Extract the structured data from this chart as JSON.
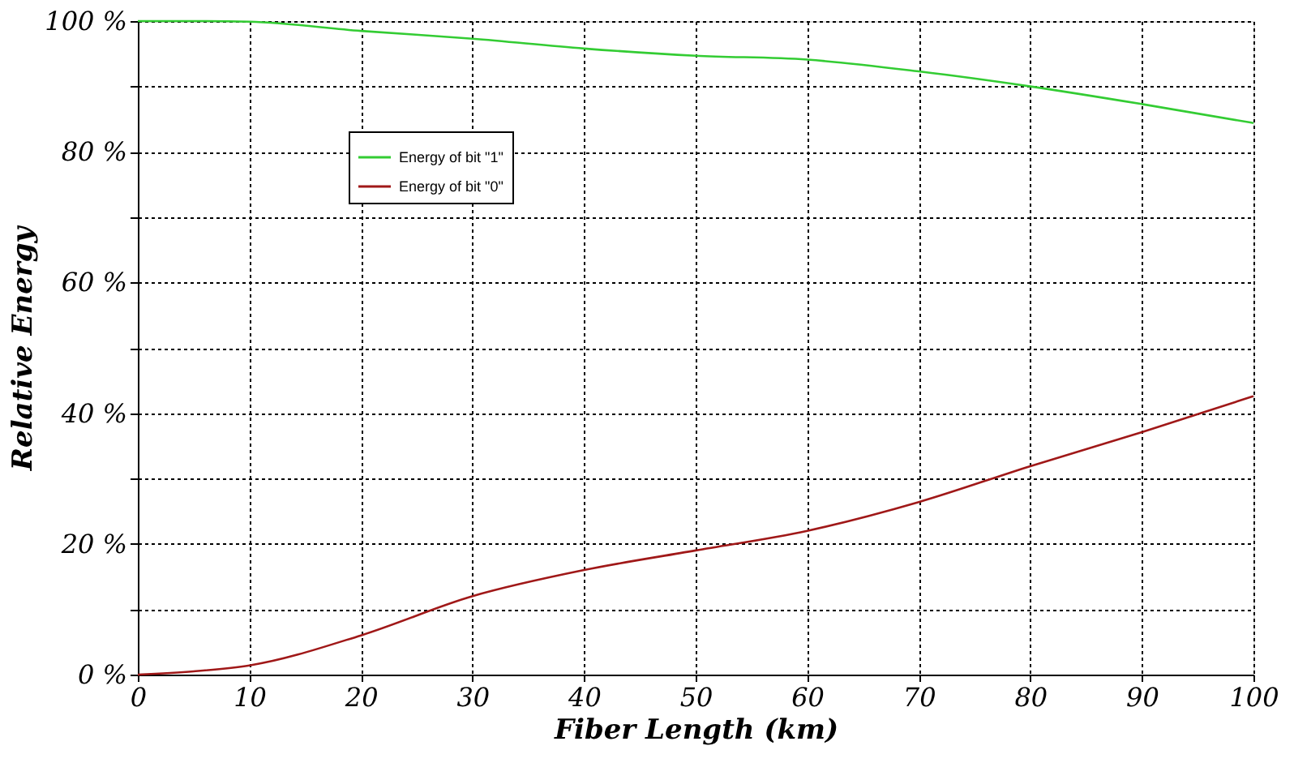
{
  "chart_data": {
    "type": "line",
    "xlabel": "Fiber Length (km)",
    "ylabel": "Relative Energy",
    "xlim": [
      0,
      100
    ],
    "ylim": [
      0,
      100
    ],
    "xticks": [
      0,
      10,
      20,
      30,
      40,
      50,
      60,
      70,
      80,
      90,
      100
    ],
    "yticks": [
      {
        "value": 0,
        "label": "0 %"
      },
      {
        "value": 10,
        "label": null
      },
      {
        "value": 20,
        "label": "20 %"
      },
      {
        "value": 30,
        "label": null
      },
      {
        "value": 40,
        "label": "40 %"
      },
      {
        "value": 50,
        "label": null
      },
      {
        "value": 60,
        "label": "60 %"
      },
      {
        "value": 70,
        "label": null
      },
      {
        "value": 80,
        "label": "80 %"
      },
      {
        "value": 90,
        "label": null
      },
      {
        "value": 100,
        "label": "100 %"
      }
    ],
    "grid": true,
    "legend": "top left",
    "line_style": "solid",
    "marker": "none",
    "x": [
      0,
      5,
      10,
      20,
      30,
      40,
      50,
      60,
      70,
      80,
      90,
      100
    ],
    "series": [
      {
        "name": "Energy of bit \"1\"",
        "color": "#33cc33",
        "values": [
          100,
          100,
          99.9,
          98.5,
          97.3,
          95.8,
          94.7,
          94.1,
          92.3,
          90,
          87.3,
          84.4
        ]
      },
      {
        "name": "Energy of bit \"0\"",
        "color": "#a01818",
        "values": [
          0,
          0.5,
          1.4,
          6,
          12,
          16,
          19,
          22,
          26.4,
          31.9,
          37.1,
          42.6
        ]
      }
    ]
  }
}
